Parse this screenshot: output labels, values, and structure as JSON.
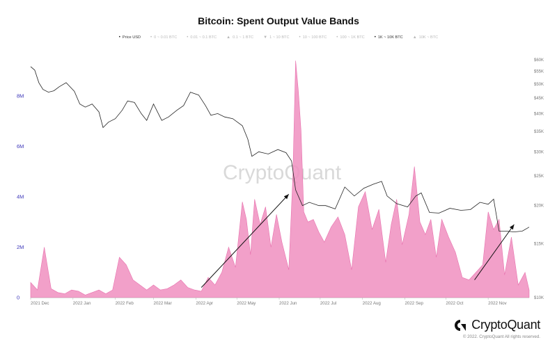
{
  "chart_data": {
    "type": "area",
    "title": "Bitcoin: Spent Output Value Bands",
    "legend": {
      "placement": "top",
      "entries": [
        {
          "label": "Price USD",
          "marker": "•",
          "active": true
        },
        {
          "label": "0 ~ 0.01 BTC",
          "marker": "•",
          "active": false
        },
        {
          "label": "0.01 ~ 0.1 BTC",
          "marker": "•",
          "active": false
        },
        {
          "label": "0.1 ~ 1 BTC",
          "marker": "▲",
          "active": false
        },
        {
          "label": "1 ~ 10 BTC",
          "marker": "▼",
          "active": false
        },
        {
          "label": "10 ~ 100 BTC",
          "marker": "•",
          "active": false
        },
        {
          "label": "100 ~ 1K BTC",
          "marker": "•",
          "active": false
        },
        {
          "label": "1K ~ 10K BTC",
          "marker": "•",
          "active": true
        },
        {
          "label": "10K ~ BTC",
          "marker": "▲",
          "active": false
        }
      ]
    },
    "watermark": "CryptoQuant",
    "x_ticks": [
      "2021 Dec",
      "2022 Jan",
      "2022 Feb",
      "2022 Mar",
      "2022 Apr",
      "2022 May",
      "2022 Jun",
      "2022 Jul",
      "2022 Aug",
      "2022 Sep",
      "2022 Oct",
      "2022 Nov"
    ],
    "y_left": {
      "ticks": [
        0,
        2000000,
        4000000,
        6000000,
        8000000
      ],
      "labels": [
        "0",
        "2M",
        "4M",
        "6M",
        "8M"
      ],
      "range": [
        0,
        9600000
      ]
    },
    "y_right": {
      "scale": "log",
      "range": [
        10000,
        60000
      ],
      "ticks": [
        10000,
        15000,
        20000,
        25000,
        30000,
        35000,
        40000,
        45000,
        50000,
        55000,
        60000
      ],
      "labels": [
        "$10K",
        "$15K",
        "$20K",
        "$25K",
        "$30K",
        "$35K",
        "$40K",
        "$45K",
        "$50K",
        "$55K",
        "$60K"
      ]
    },
    "grid": false,
    "series": [
      {
        "name": "1K ~ 10K BTC",
        "axis": "left",
        "color": "#f08fbf",
        "x": [
          "2021-12-01",
          "2021-12-06",
          "2021-12-11",
          "2021-12-16",
          "2021-12-21",
          "2021-12-26",
          "2021-12-31",
          "2022-01-05",
          "2022-01-10",
          "2022-01-15",
          "2022-01-20",
          "2022-01-25",
          "2022-01-30",
          "2022-02-04",
          "2022-02-09",
          "2022-02-14",
          "2022-02-19",
          "2022-02-24",
          "2022-03-01",
          "2022-03-06",
          "2022-03-11",
          "2022-03-16",
          "2022-03-21",
          "2022-03-26",
          "2022-03-31",
          "2022-04-05",
          "2022-04-10",
          "2022-04-15",
          "2022-04-20",
          "2022-04-25",
          "2022-04-30",
          "2022-05-05",
          "2022-05-08",
          "2022-05-11",
          "2022-05-14",
          "2022-05-18",
          "2022-05-22",
          "2022-05-26",
          "2022-05-30",
          "2022-06-03",
          "2022-06-08",
          "2022-06-11",
          "2022-06-13",
          "2022-06-15",
          "2022-06-17",
          "2022-06-19",
          "2022-06-22",
          "2022-06-26",
          "2022-06-30",
          "2022-07-04",
          "2022-07-09",
          "2022-07-14",
          "2022-07-19",
          "2022-07-24",
          "2022-07-29",
          "2022-08-03",
          "2022-08-08",
          "2022-08-13",
          "2022-08-18",
          "2022-08-22",
          "2022-08-26",
          "2022-08-30",
          "2022-09-04",
          "2022-09-08",
          "2022-09-12",
          "2022-09-16",
          "2022-09-20",
          "2022-09-24",
          "2022-09-28",
          "2022-10-03",
          "2022-10-08",
          "2022-10-13",
          "2022-10-18",
          "2022-10-23",
          "2022-10-28",
          "2022-11-01",
          "2022-11-05",
          "2022-11-09",
          "2022-11-13",
          "2022-11-18",
          "2022-11-23",
          "2022-11-28",
          "2022-12-01"
        ],
        "values": [
          600000,
          300000,
          2000000,
          350000,
          200000,
          150000,
          300000,
          250000,
          100000,
          200000,
          300000,
          150000,
          300000,
          1600000,
          1300000,
          700000,
          500000,
          300000,
          500000,
          300000,
          350000,
          500000,
          700000,
          400000,
          300000,
          250000,
          800000,
          500000,
          1000000,
          2000000,
          1200000,
          3800000,
          3100000,
          1700000,
          3900000,
          2900000,
          3600000,
          2000000,
          3300000,
          2200000,
          1100000,
          4800000,
          9400000,
          8200000,
          6600000,
          3400000,
          3000000,
          3100000,
          2600000,
          2200000,
          2800000,
          3200000,
          2500000,
          1100000,
          3600000,
          4200000,
          2700000,
          3500000,
          1400000,
          2900000,
          3900000,
          2100000,
          3300000,
          5200000,
          3000000,
          2500000,
          3100000,
          1600000,
          3100000,
          2400000,
          1800000,
          800000,
          700000,
          1000000,
          1300000,
          3400000,
          2700000,
          3100000,
          900000,
          2400000,
          500000,
          1000000,
          300000
        ]
      },
      {
        "name": "Price USD",
        "axis": "right",
        "color": "#222222",
        "x": [
          "2021-12-01",
          "2021-12-04",
          "2021-12-07",
          "2021-12-10",
          "2021-12-14",
          "2021-12-18",
          "2021-12-22",
          "2021-12-27",
          "2022-01-02",
          "2022-01-06",
          "2022-01-10",
          "2022-01-15",
          "2022-01-20",
          "2022-01-23",
          "2022-01-27",
          "2022-02-01",
          "2022-02-06",
          "2022-02-10",
          "2022-02-15",
          "2022-02-20",
          "2022-02-24",
          "2022-03-01",
          "2022-03-07",
          "2022-03-12",
          "2022-03-18",
          "2022-03-23",
          "2022-03-28",
          "2022-04-03",
          "2022-04-08",
          "2022-04-12",
          "2022-04-17",
          "2022-04-22",
          "2022-04-28",
          "2022-05-05",
          "2022-05-09",
          "2022-05-12",
          "2022-05-17",
          "2022-05-24",
          "2022-05-31",
          "2022-06-06",
          "2022-06-10",
          "2022-06-13",
          "2022-06-18",
          "2022-06-23",
          "2022-06-30",
          "2022-07-05",
          "2022-07-12",
          "2022-07-19",
          "2022-07-26",
          "2022-08-02",
          "2022-08-09",
          "2022-08-15",
          "2022-08-19",
          "2022-08-26",
          "2022-09-03",
          "2022-09-09",
          "2022-09-13",
          "2022-09-19",
          "2022-09-26",
          "2022-10-04",
          "2022-10-12",
          "2022-10-19",
          "2022-10-26",
          "2022-11-01",
          "2022-11-05",
          "2022-11-09",
          "2022-11-14",
          "2022-11-20",
          "2022-11-26",
          "2022-12-01"
        ],
        "values": [
          57000,
          55500,
          50500,
          48000,
          47000,
          47500,
          49000,
          50500,
          47300,
          43000,
          42000,
          43000,
          40500,
          36000,
          37500,
          38500,
          41000,
          44000,
          43500,
          40000,
          38000,
          43000,
          38000,
          39000,
          41000,
          42500,
          47000,
          46000,
          42500,
          39500,
          40000,
          39000,
          38500,
          36500,
          33000,
          29000,
          30000,
          29500,
          30500,
          29800,
          28000,
          22500,
          20000,
          20500,
          20000,
          20000,
          19500,
          23000,
          21500,
          22800,
          23500,
          24000,
          21500,
          20300,
          19800,
          21500,
          22000,
          19000,
          18900,
          19600,
          19300,
          19400,
          20500,
          20200,
          21000,
          16500,
          16500,
          16400,
          16500,
          17000
        ]
      }
    ],
    "annotations": [
      {
        "type": "arrow",
        "from": {
          "x": "2022-04-05",
          "y": 400000
        },
        "to": {
          "x": "2022-06-08",
          "y": 4100000
        }
      },
      {
        "type": "arrow",
        "from": {
          "x": "2022-10-22",
          "y": 700000
        },
        "to": {
          "x": "2022-11-20",
          "y": 2900000
        }
      }
    ]
  },
  "brand": {
    "name": "CryptoQuant",
    "copyright": "© 2022. CryptoQuant All rights reserved."
  }
}
